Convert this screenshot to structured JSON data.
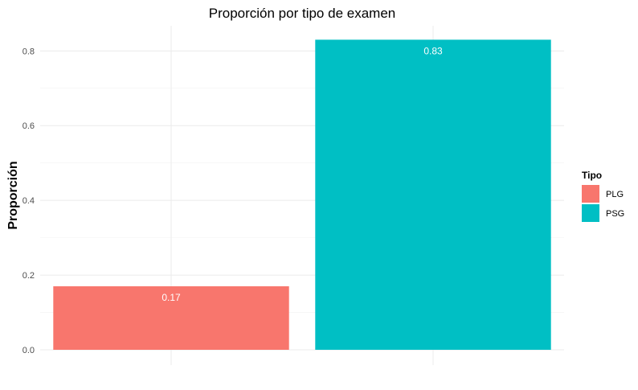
{
  "chart_data": {
    "type": "bar",
    "title": "Proporción por tipo de examen",
    "xlabel": "",
    "ylabel": "Proporción",
    "categories": [
      "PLG",
      "PSG"
    ],
    "values": [
      0.17,
      0.83
    ],
    "data_labels": [
      "0.17",
      "0.83"
    ],
    "colors": [
      "#F8766D",
      "#00BFC4"
    ],
    "ylim": [
      0,
      0.83
    ],
    "yticks": [
      0.0,
      0.2,
      0.4,
      0.6,
      0.8
    ],
    "ytick_labels": [
      "0.0",
      "0.2",
      "0.4",
      "0.6",
      "0.8"
    ],
    "grid": true,
    "legend": {
      "title": "Tipo",
      "placement": "right",
      "entries": [
        "PLG",
        "PSG"
      ]
    }
  }
}
